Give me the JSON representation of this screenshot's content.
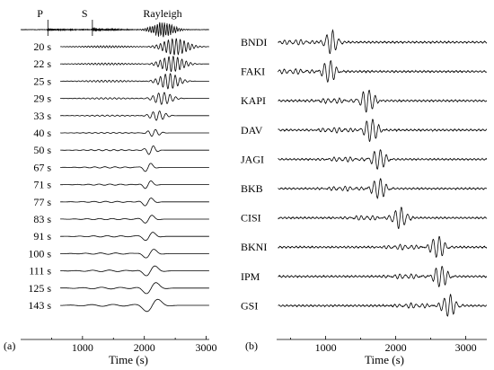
{
  "chart_data": [
    {
      "type": "line",
      "panel_label": "(a)",
      "xlabel": "Time (s)",
      "xlim": [
        0,
        3050
      ],
      "xticks": [
        1000,
        2000,
        3000
      ],
      "top_trace": {
        "phases": [
          {
            "label": "P",
            "time_s": 440
          },
          {
            "label": "S",
            "time_s": 1160
          },
          {
            "label": "Rayleigh",
            "time_s": 2300
          }
        ]
      },
      "rows": [
        {
          "label": "20 s",
          "period": 20,
          "center": 2500,
          "width": 250,
          "amp": 1.0
        },
        {
          "label": "22 s",
          "period": 22,
          "center": 2450,
          "width": 230,
          "amp": 0.95
        },
        {
          "label": "25 s",
          "period": 25,
          "center": 2400,
          "width": 200,
          "amp": 0.95
        },
        {
          "label": "29 s",
          "period": 29,
          "center": 2300,
          "width": 180,
          "amp": 0.75
        },
        {
          "label": "33 s",
          "period": 33,
          "center": 2220,
          "width": 150,
          "amp": 0.6
        },
        {
          "label": "40 s",
          "period": 40,
          "center": 2150,
          "width": 120,
          "amp": 0.45
        },
        {
          "label": "50 s",
          "period": 50,
          "center": 2110,
          "width": 100,
          "amp": 0.6
        },
        {
          "label": "67 s",
          "period": 67,
          "center": 2060,
          "width": 100,
          "amp": 0.65
        },
        {
          "label": "71 s",
          "period": 71,
          "center": 2060,
          "width": 100,
          "amp": 0.6
        },
        {
          "label": "77 s",
          "period": 77,
          "center": 2060,
          "width": 110,
          "amp": 0.6
        },
        {
          "label": "83 s",
          "period": 83,
          "center": 2070,
          "width": 120,
          "amp": 0.6
        },
        {
          "label": "91 s",
          "period": 91,
          "center": 2080,
          "width": 130,
          "amp": 0.65
        },
        {
          "label": "100 s",
          "period": 100,
          "center": 2090,
          "width": 140,
          "amp": 0.7
        },
        {
          "label": "111 s",
          "period": 111,
          "center": 2100,
          "width": 150,
          "amp": 0.8
        },
        {
          "label": "125 s",
          "period": 125,
          "center": 2110,
          "width": 160,
          "amp": 0.9
        },
        {
          "label": "143 s",
          "period": 143,
          "center": 2130,
          "width": 180,
          "amp": 1.0
        }
      ]
    },
    {
      "type": "line",
      "panel_label": "(b)",
      "xlabel": "Time (s)",
      "xlim": [
        300,
        3300
      ],
      "xticks": [
        1000,
        2000,
        3000
      ],
      "rows": [
        {
          "label": "BNDI",
          "arrival": 1080,
          "width": 100,
          "amp": 1.0
        },
        {
          "label": "FAKI",
          "arrival": 1050,
          "width": 100,
          "amp": 1.0
        },
        {
          "label": "KAPI",
          "arrival": 1600,
          "width": 110,
          "amp": 1.0
        },
        {
          "label": "DAV",
          "arrival": 1650,
          "width": 110,
          "amp": 1.0
        },
        {
          "label": "JAGI",
          "arrival": 1760,
          "width": 110,
          "amp": 0.9
        },
        {
          "label": "BKB",
          "arrival": 1760,
          "width": 110,
          "amp": 0.9
        },
        {
          "label": "CISI",
          "arrival": 2060,
          "width": 110,
          "amp": 0.9
        },
        {
          "label": "BKNI",
          "arrival": 2600,
          "width": 110,
          "amp": 0.95
        },
        {
          "label": "IPM",
          "arrival": 2640,
          "width": 110,
          "amp": 0.95
        },
        {
          "label": "GSI",
          "arrival": 2760,
          "width": 110,
          "amp": 0.95
        }
      ]
    }
  ]
}
